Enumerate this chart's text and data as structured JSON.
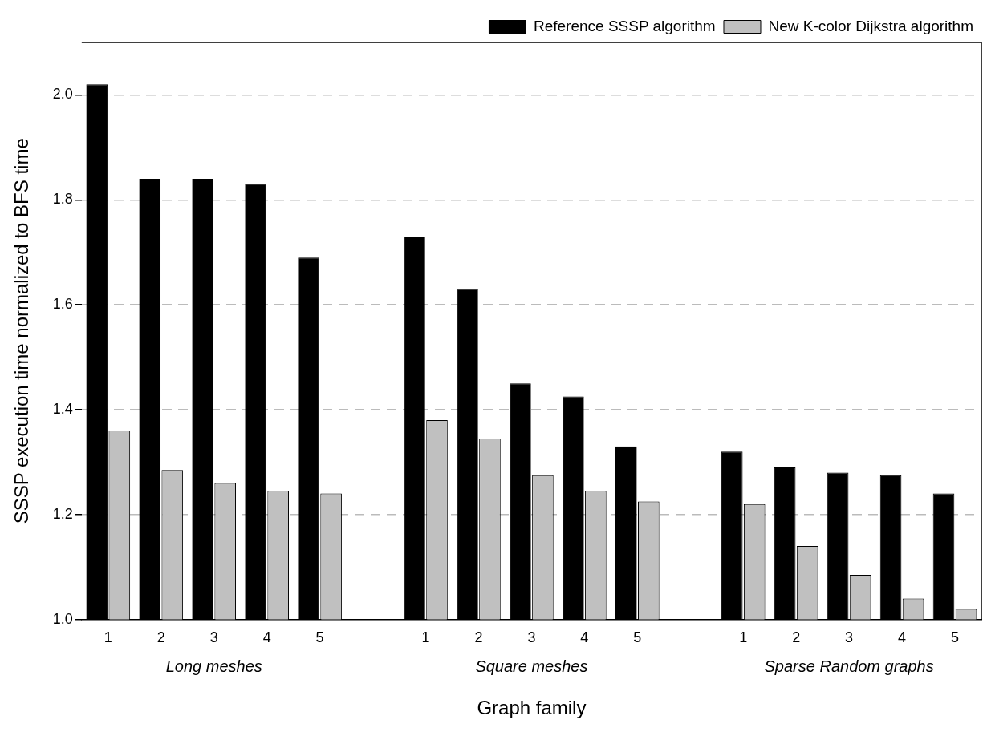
{
  "chart_data": {
    "type": "bar",
    "xlabel": "Graph family",
    "ylabel": "SSSP execution time normalized to BFS time",
    "categories": [
      "1",
      "2",
      "3",
      "4",
      "5",
      null,
      "1",
      "2",
      "3",
      "4",
      "5",
      null,
      "1",
      "2",
      "3",
      "4",
      "5"
    ],
    "series": [
      {
        "name": "Reference SSSP algorithm",
        "color": "#000000",
        "values": [
          2.02,
          1.84,
          1.84,
          1.83,
          1.69,
          null,
          1.73,
          1.63,
          1.45,
          1.425,
          1.33,
          null,
          1.32,
          1.29,
          1.28,
          1.275,
          1.24
        ]
      },
      {
        "name": "New K-color Dijkstra algorithm",
        "color": "#c0c0c0",
        "values": [
          1.36,
          1.285,
          1.26,
          1.245,
          1.24,
          null,
          1.38,
          1.345,
          1.275,
          1.245,
          1.225,
          null,
          1.22,
          1.14,
          1.085,
          1.04,
          1.02
        ]
      }
    ],
    "annotations": [
      "Long meshes",
      "Square meshes",
      "Sparse Random graphs"
    ],
    "ylim": [
      1.0,
      2.1
    ],
    "yticks": [
      {
        "value": 1.0,
        "label": "1.0"
      },
      {
        "value": 1.2,
        "label": "1.2"
      },
      {
        "value": 1.4,
        "label": "1.4"
      },
      {
        "value": 1.6,
        "label": "1.6"
      },
      {
        "value": 1.8,
        "label": "1.8"
      },
      {
        "value": 2.0,
        "label": "2.0"
      }
    ],
    "grid": "y",
    "legend": "top right"
  }
}
